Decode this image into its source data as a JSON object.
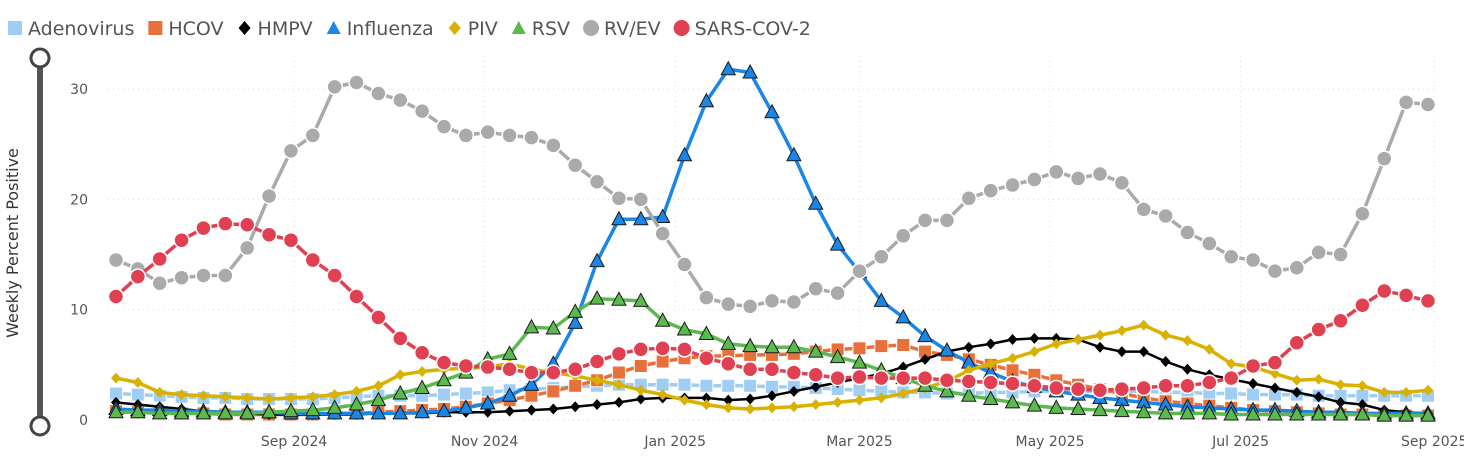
{
  "chart_data": {
    "type": "line",
    "title": "",
    "xlabel": "",
    "ylabel": "Weekly Percent Positive",
    "ylim": [
      0,
      33
    ],
    "yticks": [
      0,
      10,
      20,
      30
    ],
    "x_start": "2024-07-06",
    "x_step_days": 7,
    "n_weeks": 61,
    "xtick_labels": [
      {
        "date": "2024-09-01",
        "label": "Sep 2024"
      },
      {
        "date": "2024-11-01",
        "label": "Nov 2024"
      },
      {
        "date": "2025-01-01",
        "label": "Jan 2025"
      },
      {
        "date": "2025-03-01",
        "label": "Mar 2025"
      },
      {
        "date": "2025-05-01",
        "label": "May 2025"
      },
      {
        "date": "2025-07-01",
        "label": "Jul 2025"
      },
      {
        "date": "2025-09-01",
        "label": "Sep 2025"
      }
    ],
    "grid": true,
    "legend_position": "top-left",
    "series": [
      {
        "name": "Adenovirus",
        "color": "#9fcdf4",
        "marker": "square",
        "dash": "solid",
        "values": [
          2.4,
          2.3,
          2.2,
          2.1,
          2.0,
          2.0,
          1.9,
          1.9,
          1.9,
          1.9,
          2.0,
          2.1,
          2.2,
          2.2,
          2.2,
          2.3,
          2.4,
          2.5,
          2.7,
          2.8,
          2.9,
          3.0,
          3.1,
          3.2,
          3.2,
          3.2,
          3.2,
          3.1,
          3.1,
          3.1,
          3.0,
          3.0,
          2.9,
          2.8,
          2.7,
          2.6,
          2.5,
          2.5,
          2.4,
          2.4,
          2.5,
          2.5,
          2.6,
          2.6,
          2.6,
          2.6,
          2.6,
          2.6,
          2.5,
          2.5,
          2.4,
          2.4,
          2.3,
          2.3,
          2.3,
          2.2,
          2.2,
          2.2,
          2.2,
          2.2,
          2.2
        ]
      },
      {
        "name": "HCOV",
        "color": "#e8703a",
        "marker": "square",
        "dash": "solid",
        "values": [
          0.8,
          0.7,
          0.7,
          0.6,
          0.6,
          0.5,
          0.5,
          0.5,
          0.5,
          0.5,
          0.6,
          0.6,
          0.7,
          0.8,
          0.9,
          1.0,
          1.2,
          1.5,
          1.8,
          2.2,
          2.6,
          3.1,
          3.6,
          4.3,
          4.9,
          5.3,
          5.6,
          5.8,
          5.8,
          5.9,
          5.9,
          6.0,
          6.2,
          6.4,
          6.5,
          6.7,
          6.8,
          6.2,
          5.9,
          5.5,
          5.0,
          4.5,
          4.1,
          3.6,
          3.2,
          2.8,
          2.4,
          2.0,
          1.7,
          1.5,
          1.3,
          1.1,
          0.9,
          0.8,
          0.7,
          0.6,
          0.5,
          0.5,
          0.4,
          0.4,
          0.4
        ]
      },
      {
        "name": "HMPV",
        "color": "#000000",
        "marker": "diamond",
        "dash": "solid",
        "values": [
          1.6,
          1.4,
          1.2,
          1.0,
          0.8,
          0.7,
          0.6,
          0.5,
          0.5,
          0.5,
          0.5,
          0.5,
          0.6,
          0.6,
          0.6,
          0.7,
          0.7,
          0.7,
          0.8,
          0.9,
          1.0,
          1.2,
          1.4,
          1.6,
          1.9,
          2.0,
          2.0,
          2.0,
          1.8,
          1.9,
          2.2,
          2.6,
          3.0,
          3.4,
          3.8,
          4.2,
          4.8,
          5.5,
          6.2,
          6.6,
          6.9,
          7.3,
          7.4,
          7.4,
          7.3,
          6.6,
          6.2,
          6.2,
          5.3,
          4.6,
          4.1,
          3.7,
          3.3,
          2.9,
          2.5,
          2.1,
          1.6,
          1.4,
          0.9,
          0.7,
          0.6
        ]
      },
      {
        "name": "Influenza",
        "color": "#1a86e8",
        "marker": "triangle",
        "dash": "solid",
        "values": [
          1.0,
          0.9,
          0.9,
          0.8,
          0.8,
          0.7,
          0.7,
          0.7,
          0.6,
          0.6,
          0.6,
          0.6,
          0.6,
          0.6,
          0.7,
          0.8,
          1.1,
          1.5,
          2.2,
          3.2,
          5.1,
          8.8,
          14.4,
          18.2,
          18.2,
          18.4,
          24.0,
          28.9,
          31.8,
          31.5,
          27.9,
          24.0,
          19.6,
          15.9,
          13.4,
          10.8,
          9.3,
          7.6,
          6.3,
          5.2,
          4.3,
          3.5,
          3.0,
          2.6,
          2.3,
          2.0,
          1.8,
          1.6,
          1.4,
          1.2,
          1.1,
          1.0,
          0.9,
          0.9,
          0.8,
          0.7,
          0.7,
          0.6,
          0.6,
          0.6,
          0.6
        ]
      },
      {
        "name": "PIV",
        "color": "#d9b100",
        "marker": "diamond",
        "dash": "solid",
        "values": [
          3.8,
          3.4,
          2.5,
          2.3,
          2.2,
          2.1,
          2.0,
          1.9,
          2.0,
          2.1,
          2.3,
          2.6,
          3.1,
          4.1,
          4.4,
          4.6,
          4.7,
          4.8,
          5.1,
          4.6,
          4.3,
          4.0,
          3.6,
          3.2,
          2.7,
          2.3,
          1.8,
          1.4,
          1.1,
          1.0,
          1.1,
          1.2,
          1.4,
          1.6,
          1.8,
          2.0,
          2.4,
          2.9,
          3.5,
          4.5,
          5.1,
          5.6,
          6.2,
          6.9,
          7.3,
          7.7,
          8.1,
          8.6,
          7.7,
          7.2,
          6.4,
          5.1,
          4.8,
          4.2,
          3.6,
          3.7,
          3.2,
          3.1,
          2.5,
          2.5,
          2.7
        ]
      },
      {
        "name": "RSV",
        "color": "#5bb94e",
        "marker": "triangle",
        "dash": "solid",
        "values": [
          0.7,
          0.7,
          0.6,
          0.6,
          0.6,
          0.6,
          0.6,
          0.7,
          0.8,
          0.9,
          1.1,
          1.4,
          1.8,
          2.4,
          2.9,
          3.6,
          4.3,
          5.5,
          6.0,
          8.4,
          8.3,
          9.8,
          11.0,
          10.9,
          10.8,
          9.0,
          8.2,
          7.8,
          6.9,
          6.7,
          6.6,
          6.6,
          6.2,
          5.7,
          5.2,
          4.5,
          3.8,
          3.1,
          2.6,
          2.2,
          1.9,
          1.6,
          1.3,
          1.1,
          1.0,
          0.9,
          0.8,
          0.7,
          0.6,
          0.6,
          0.6,
          0.5,
          0.5,
          0.5,
          0.5,
          0.5,
          0.5,
          0.5,
          0.4,
          0.4,
          0.4
        ]
      },
      {
        "name": "RV/EV",
        "color": "#aaaaaa",
        "marker": "circle",
        "dash": "solid",
        "values": [
          14.5,
          13.7,
          12.4,
          12.9,
          13.1,
          13.1,
          15.6,
          20.3,
          24.4,
          25.8,
          30.2,
          30.6,
          29.6,
          29.0,
          28.0,
          26.6,
          25.8,
          26.1,
          25.8,
          25.6,
          24.9,
          23.1,
          21.6,
          20.1,
          20.0,
          16.9,
          14.1,
          11.1,
          10.5,
          10.3,
          10.8,
          10.7,
          11.9,
          11.5,
          13.5,
          14.8,
          16.7,
          18.1,
          18.1,
          20.1,
          20.8,
          21.3,
          21.8,
          22.5,
          21.9,
          22.3,
          21.5,
          19.1,
          18.5,
          17.0,
          16.0,
          14.8,
          14.5,
          13.5,
          13.8,
          15.2,
          15.0,
          18.7,
          23.7,
          28.8,
          28.6
        ]
      },
      {
        "name": "SARS-COV-2",
        "color": "#e04052",
        "marker": "circle",
        "dash": "solid",
        "values": [
          11.2,
          13.0,
          14.6,
          16.3,
          17.4,
          17.8,
          17.7,
          16.8,
          16.3,
          14.5,
          13.1,
          11.2,
          9.3,
          7.4,
          6.1,
          5.2,
          4.9,
          4.8,
          4.6,
          4.3,
          4.3,
          4.6,
          5.3,
          6.0,
          6.4,
          6.5,
          6.4,
          5.6,
          5.1,
          4.6,
          4.6,
          4.3,
          4.1,
          3.8,
          3.9,
          3.8,
          3.8,
          3.8,
          3.6,
          3.5,
          3.4,
          3.3,
          3.1,
          2.9,
          2.8,
          2.7,
          2.8,
          2.9,
          3.1,
          3.1,
          3.4,
          3.8,
          4.9,
          5.2,
          7.0,
          8.2,
          9.0,
          10.4,
          11.7,
          11.3,
          10.8
        ]
      }
    ]
  }
}
